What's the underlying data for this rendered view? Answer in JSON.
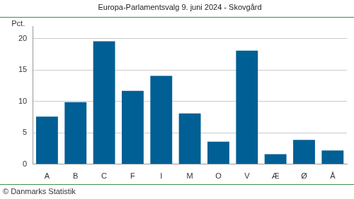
{
  "chart_data": {
    "type": "bar",
    "title": "Europa-Parlamentsvalg 9. juni 2024 - Skovgård",
    "y_label": "Pct.",
    "source": "© Danmarks Statistik",
    "categories": [
      "A",
      "B",
      "C",
      "F",
      "I",
      "M",
      "O",
      "V",
      "Æ",
      "Ø",
      "Å"
    ],
    "values": [
      7.6,
      9.9,
      19.6,
      11.7,
      14.1,
      8.1,
      3.6,
      18.1,
      1.6,
      3.9,
      2.2
    ],
    "color": "#005f94",
    "ylim": [
      0,
      22
    ],
    "yticks": [
      0,
      5,
      10,
      15,
      20
    ],
    "grid": true
  }
}
